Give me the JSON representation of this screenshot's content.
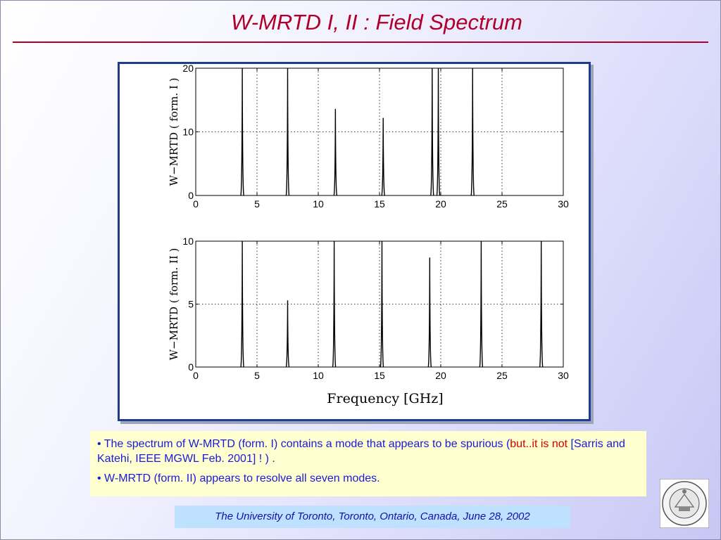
{
  "slide": {
    "title": "W-MRTD I, II : Field Spectrum",
    "note1_prefix": "• The spectrum of W-MRTD (form. I) contains a mode that appears to be spurious (",
    "note1_highlight": "but..it is not",
    "note1_suffix": "  [Sarris and Katehi, IEEE MGWL Feb. 2001] ! ) .",
    "note2": "• W-MRTD (form. II) appears to resolve all seven modes.",
    "footer": "The University of Toronto, Toronto, Ontario, Canada, June 28, 2002",
    "seal_text": "UNIVERSITY OF MICHIGAN",
    "colors": {
      "title": "#b0002a",
      "note_text": "#1a1ad8",
      "highlight": "#d40000",
      "frame": "#1f3c8f"
    }
  },
  "chart_data": [
    {
      "type": "line",
      "xlabel": "",
      "ylabel": "W−MRTD ( form. I )",
      "xlim": [
        0,
        30
      ],
      "ylim": [
        0,
        20
      ],
      "xticks": [
        0,
        5,
        10,
        15,
        20,
        25,
        30
      ],
      "yticks": [
        0,
        10,
        20
      ],
      "grid": "dotted",
      "peaks": [
        {
          "x": 3.8,
          "y": 20
        },
        {
          "x": 7.5,
          "y": 20
        },
        {
          "x": 11.4,
          "y": 13.6
        },
        {
          "x": 15.3,
          "y": 12.2
        },
        {
          "x": 19.3,
          "y": 20
        },
        {
          "x": 19.8,
          "y": 20
        },
        {
          "x": 22.6,
          "y": 20
        }
      ]
    },
    {
      "type": "line",
      "xlabel": "Frequency [GHz]",
      "ylabel": "W−MRTD ( form. II )",
      "xlim": [
        0,
        30
      ],
      "ylim": [
        0,
        10
      ],
      "xticks": [
        0,
        5,
        10,
        15,
        20,
        25,
        30
      ],
      "yticks": [
        0,
        5,
        10
      ],
      "grid": "dotted",
      "peaks": [
        {
          "x": 3.8,
          "y": 10
        },
        {
          "x": 7.5,
          "y": 5.3
        },
        {
          "x": 11.3,
          "y": 10
        },
        {
          "x": 15.2,
          "y": 10
        },
        {
          "x": 19.1,
          "y": 8.7
        },
        {
          "x": 23.3,
          "y": 10
        },
        {
          "x": 28.2,
          "y": 10
        }
      ]
    }
  ]
}
